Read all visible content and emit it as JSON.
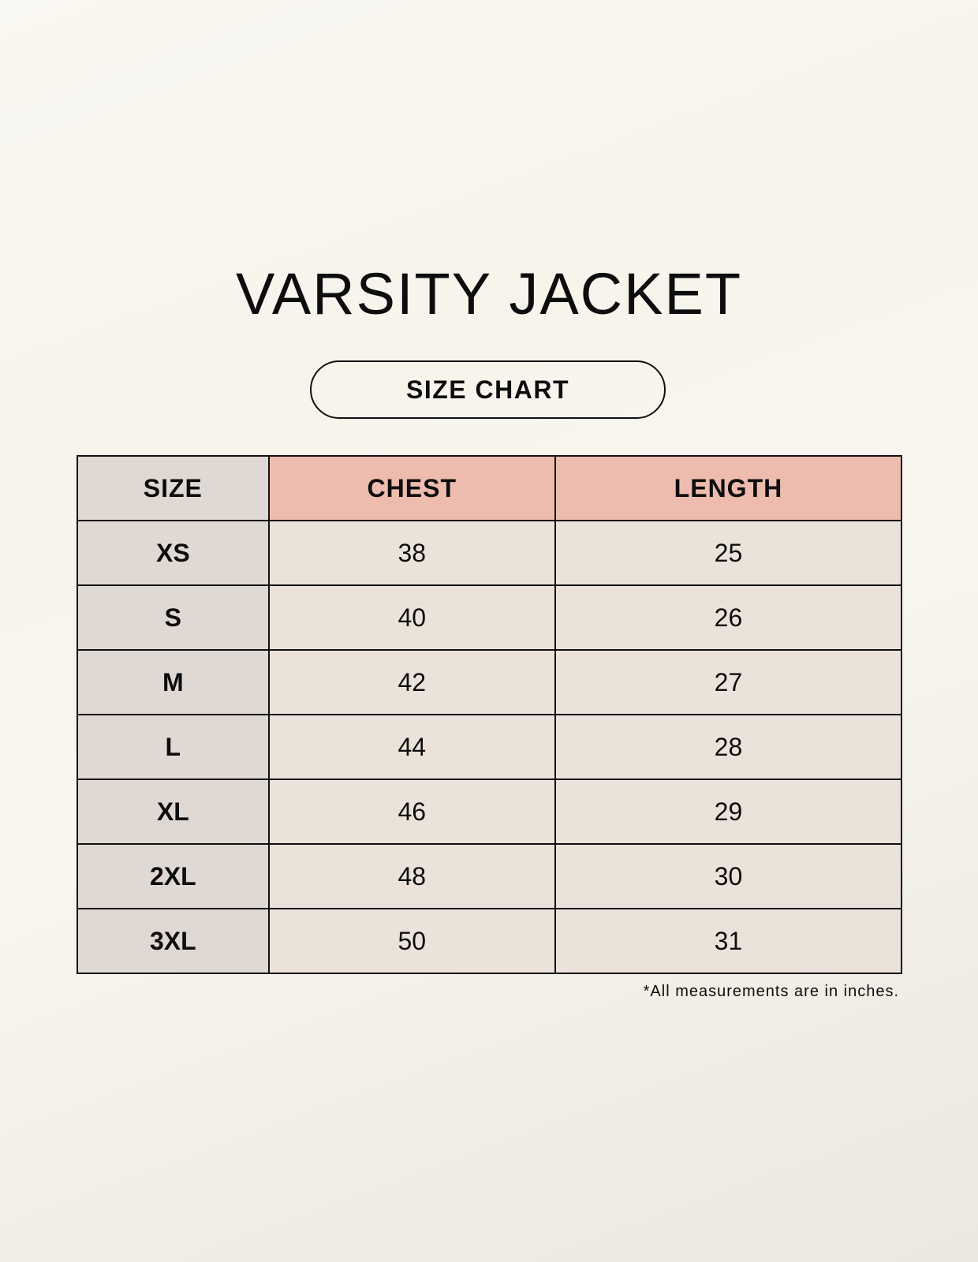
{
  "title": "VARSITY JACKET",
  "subtitle": "SIZE CHART",
  "table": {
    "headers": [
      "SIZE",
      "CHEST",
      "LENGTH"
    ],
    "rows": [
      [
        "XS",
        "38",
        "25"
      ],
      [
        "S",
        "40",
        "26"
      ],
      [
        "M",
        "42",
        "27"
      ],
      [
        "L",
        "44",
        "28"
      ],
      [
        "XL",
        "46",
        "29"
      ],
      [
        "2XL",
        "48",
        "30"
      ],
      [
        "3XL",
        "50",
        "31"
      ]
    ]
  },
  "footnote": "*All measurements are in inches.",
  "colors": {
    "size_column": "#e0d8d3",
    "header_accent": "#edbcae",
    "value_cells": "#ebe3d9"
  }
}
